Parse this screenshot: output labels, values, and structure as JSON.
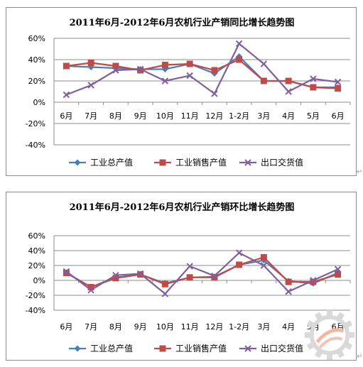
{
  "colors": {
    "industrial_output": "#4a7ebb",
    "industrial_sales": "#be4b48",
    "export_delivery": "#7d60a0",
    "grid": "#8c8c8c",
    "axis": "#8c8c8c"
  },
  "chart_data": [
    {
      "type": "line",
      "title": "2011年6月-2012年6月农机行业产销同比增长趋势图",
      "categories": [
        "6月",
        "7月",
        "8月",
        "9月",
        "10月",
        "11月",
        "12月",
        "1-2月",
        "3月",
        "4月",
        "5月",
        "6月"
      ],
      "y_ticks": [
        "60%",
        "40%",
        "20%",
        "0%",
        "-20%",
        "-40%"
      ],
      "ylim": [
        -40,
        60
      ],
      "y_unit": "%",
      "grid": true,
      "legend_position": "bottom",
      "series": [
        {
          "name": "工业总产值",
          "values": [
            34,
            33,
            32,
            31,
            31,
            36,
            27,
            43,
            20,
            20,
            14,
            14
          ]
        },
        {
          "name": "工业销售产值",
          "values": [
            34,
            37,
            34,
            30,
            35,
            36,
            30,
            40,
            20,
            20,
            14,
            13
          ]
        },
        {
          "name": "出口交货值",
          "values": [
            7,
            16,
            30,
            31,
            20,
            25,
            8,
            55,
            36,
            10,
            22,
            19
          ]
        }
      ]
    },
    {
      "type": "line",
      "title": "2011年6月-2012年6月农机行业产销环比增长趋势图",
      "categories": [
        "6月",
        "7月",
        "8月",
        "9月",
        "10月",
        "11月",
        "12月",
        "1-2月",
        "3月",
        "4月",
        "5月",
        "6月"
      ],
      "y_ticks": [
        "60%",
        "40%",
        "20%",
        "0%",
        "-20%",
        "-40%"
      ],
      "ylim": [
        -40,
        60
      ],
      "y_unit": "%",
      "grid": true,
      "legend_position": "bottom",
      "series": [
        {
          "name": "工业总产值",
          "values": [
            10,
            -9,
            4,
            8,
            -4,
            4,
            5,
            21,
            27,
            -1,
            -4,
            10
          ]
        },
        {
          "name": "工业销售产值",
          "values": [
            10,
            -9,
            3,
            8,
            -5,
            4,
            4,
            21,
            31,
            -2,
            -2,
            8
          ]
        },
        {
          "name": "出口交货值",
          "values": [
            12,
            -13,
            7,
            9,
            -18,
            19,
            6,
            37,
            20,
            -15,
            0,
            15
          ]
        }
      ]
    }
  ],
  "marks": {
    "paragraph": "↵"
  }
}
